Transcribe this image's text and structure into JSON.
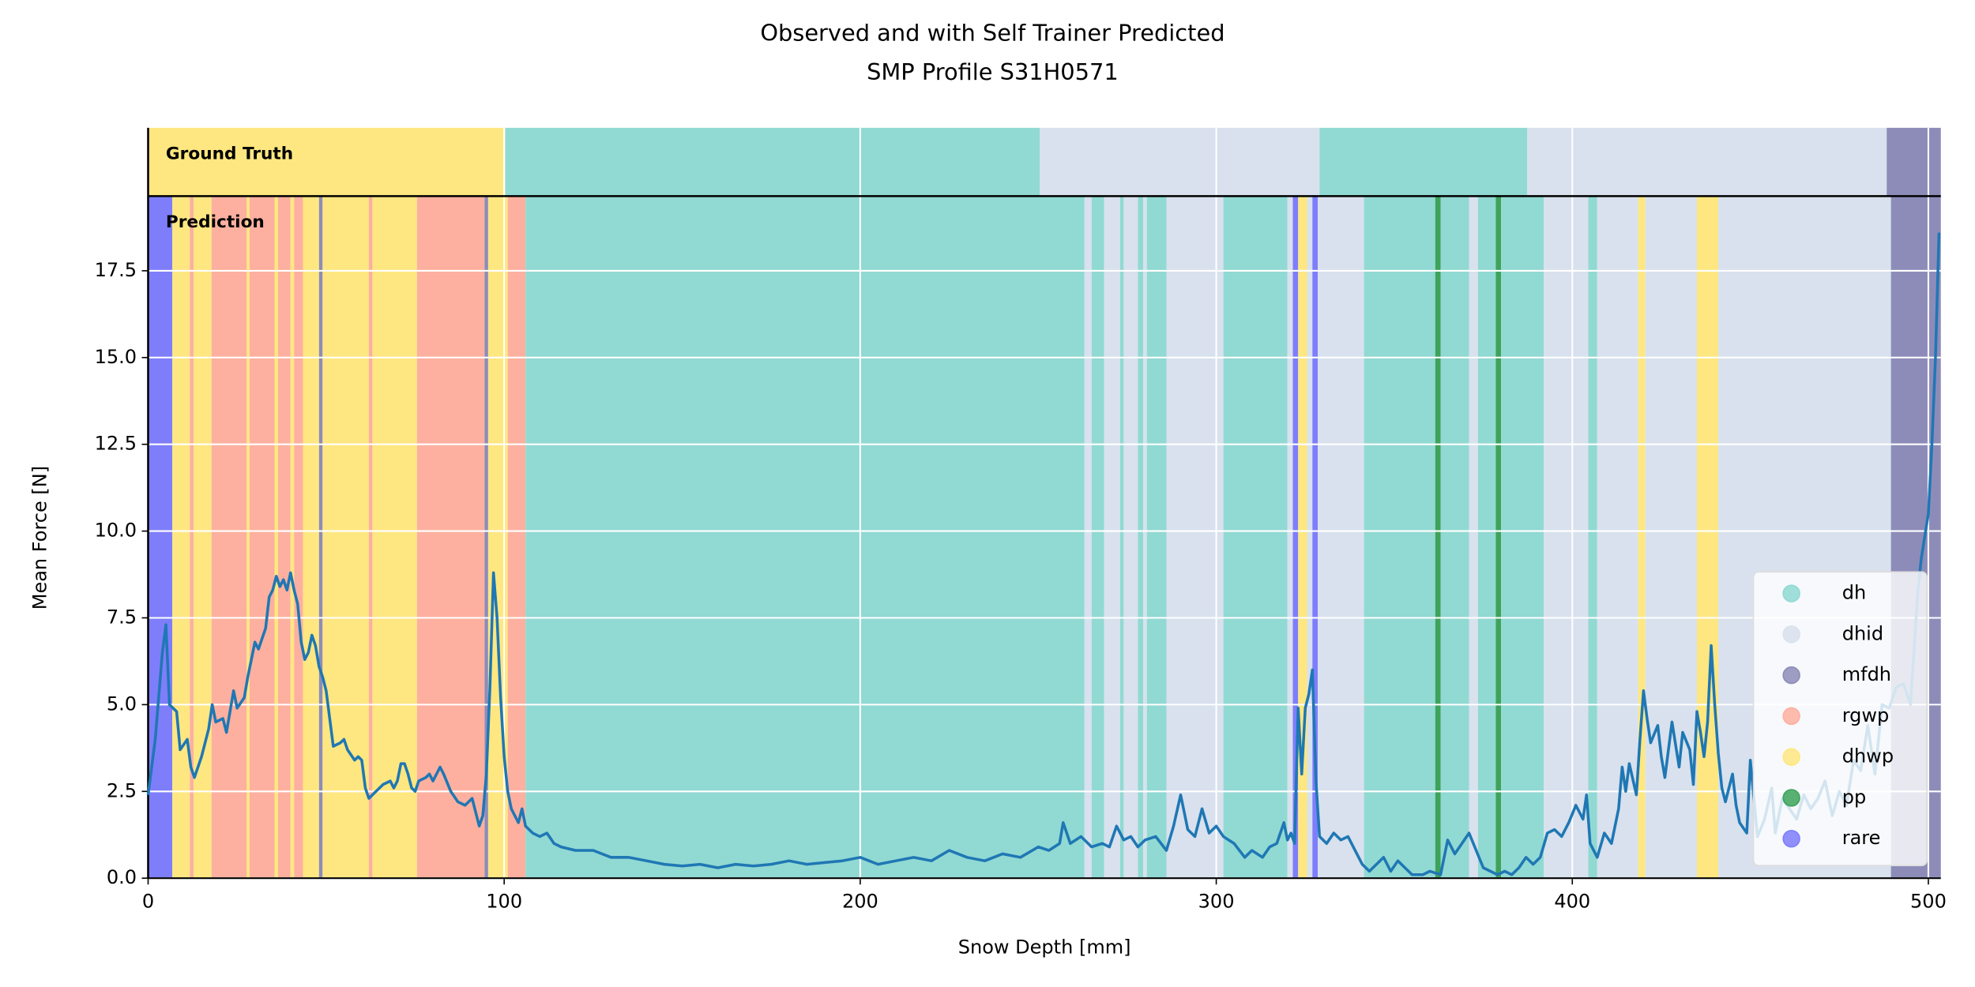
{
  "chart_data": {
    "type": "line",
    "title": [
      "Observed and with Self Trainer Predicted",
      "SMP Profile S31H0571"
    ],
    "xlabel": "Snow Depth [mm]",
    "ylabel": "Mean Force [N]",
    "xlim": [
      0,
      503.5
    ],
    "ylim": [
      0,
      19.65
    ],
    "xticks": [
      0,
      100,
      200,
      300,
      400,
      500
    ],
    "yticks": [
      {
        "value": 0,
        "label": "0.0"
      },
      2.5,
      {
        "value": 5,
        "label": "5.0"
      },
      7.5,
      {
        "value": 10,
        "label": "10.0"
      },
      12.5,
      {
        "value": 15,
        "label": "15.0"
      },
      17.5
    ],
    "grid": true,
    "legend": "lower right",
    "color": "#1f77b4",
    "x": [
      0,
      2,
      4,
      5,
      6,
      8,
      9,
      11,
      12,
      13,
      15,
      17,
      18,
      19,
      21,
      22,
      23,
      24,
      25,
      27,
      28,
      29,
      30,
      31,
      32,
      33,
      34,
      35,
      36,
      37,
      38,
      39,
      40,
      41,
      42,
      43,
      44,
      45,
      46,
      47,
      48,
      49,
      50,
      51,
      52,
      54,
      55,
      56,
      58,
      59,
      60,
      61,
      62,
      64,
      66,
      68,
      69,
      70,
      71,
      72,
      73,
      74,
      75,
      76,
      78,
      79,
      80,
      82,
      83,
      85,
      87,
      89,
      91,
      92,
      93,
      94,
      95,
      96,
      97,
      98,
      99,
      100,
      101,
      102,
      103,
      104,
      105,
      106,
      108,
      110,
      112,
      114,
      116,
      120,
      125,
      130,
      135,
      140,
      145,
      150,
      155,
      160,
      165,
      170,
      175,
      180,
      185,
      190,
      195,
      200,
      205,
      210,
      215,
      220,
      225,
      230,
      235,
      240,
      245,
      250,
      253,
      256,
      257,
      259,
      262,
      265,
      268,
      270,
      272,
      274,
      276,
      278,
      280,
      283,
      286,
      288,
      290,
      292,
      294,
      296,
      298,
      300,
      302,
      305,
      308,
      310,
      313,
      315,
      317,
      319,
      320,
      321,
      322,
      323,
      324,
      325,
      326,
      327,
      328,
      329,
      331,
      333,
      335,
      337,
      339,
      341,
      343,
      345,
      347,
      349,
      351,
      353,
      355,
      358,
      360,
      363,
      365,
      367,
      369,
      371,
      373,
      375,
      377,
      379,
      381,
      383,
      385,
      387,
      389,
      391,
      393,
      395,
      397,
      399,
      401,
      403,
      404,
      405,
      407,
      409,
      411,
      413,
      414,
      415,
      416,
      418,
      419,
      420,
      421,
      422,
      424,
      425,
      426,
      428,
      430,
      431,
      433,
      434,
      435,
      436,
      437,
      438,
      439,
      440,
      441,
      442,
      443,
      445,
      446,
      447,
      449,
      450,
      451,
      452,
      454,
      456,
      457,
      459,
      461,
      463,
      465,
      467,
      469,
      471,
      473,
      475,
      477,
      479,
      481,
      483,
      485,
      487,
      489,
      491,
      493,
      495,
      497,
      498,
      500,
      501,
      502,
      503
    ],
    "values": [
      2.4,
      4,
      6.5,
      7.3,
      5,
      4.8,
      3.7,
      4,
      3.2,
      2.9,
      3.5,
      4.3,
      5,
      4.5,
      4.6,
      4.2,
      4.8,
      5.4,
      4.9,
      5.2,
      5.8,
      6.3,
      6.8,
      6.6,
      6.9,
      7.2,
      8.1,
      8.3,
      8.7,
      8.4,
      8.6,
      8.3,
      8.8,
      8.3,
      7.9,
      6.8,
      6.3,
      6.5,
      7,
      6.7,
      6.1,
      5.8,
      5.4,
      4.6,
      3.8,
      3.9,
      4,
      3.7,
      3.4,
      3.5,
      3.4,
      2.6,
      2.3,
      2.5,
      2.7,
      2.8,
      2.6,
      2.8,
      3.3,
      3.3,
      3,
      2.6,
      2.5,
      2.8,
      2.9,
      3,
      2.8,
      3.2,
      3,
      2.5,
      2.2,
      2.1,
      2.3,
      1.9,
      1.5,
      1.8,
      3,
      5.5,
      8.8,
      7.5,
      5.2,
      3.5,
      2.5,
      2,
      1.8,
      1.6,
      2,
      1.5,
      1.3,
      1.2,
      1.3,
      1,
      0.9,
      0.8,
      0.8,
      0.6,
      0.6,
      0.5,
      0.4,
      0.35,
      0.4,
      0.3,
      0.4,
      0.35,
      0.4,
      0.5,
      0.4,
      0.45,
      0.5,
      0.6,
      0.4,
      0.5,
      0.6,
      0.5,
      0.8,
      0.6,
      0.5,
      0.7,
      0.6,
      0.9,
      0.8,
      1,
      1.6,
      1,
      1.2,
      0.9,
      1,
      0.9,
      1.5,
      1.1,
      1.2,
      0.9,
      1.1,
      1.2,
      0.8,
      1.5,
      2.4,
      1.4,
      1.2,
      2,
      1.3,
      1.5,
      1.2,
      1,
      0.6,
      0.8,
      0.6,
      0.9,
      1,
      1.6,
      1.1,
      1.3,
      1,
      4.9,
      3,
      4.9,
      5.3,
      6,
      2.8,
      1.2,
      1,
      1.3,
      1.1,
      1.2,
      0.8,
      0.4,
      0.2,
      0.4,
      0.6,
      0.2,
      0.5,
      0.3,
      0.1,
      0.1,
      0.2,
      0.1,
      1.1,
      0.7,
      1,
      1.3,
      0.8,
      0.3,
      0.2,
      0.1,
      0.2,
      0.1,
      0.3,
      0.6,
      0.4,
      0.6,
      1.3,
      1.4,
      1.2,
      1.6,
      2.1,
      1.7,
      2.4,
      1,
      0.6,
      1.3,
      1,
      2,
      3.2,
      2.5,
      3.3,
      2.4,
      4,
      5.4,
      4.6,
      3.9,
      4.4,
      3.5,
      2.9,
      4.5,
      3.2,
      4.2,
      3.7,
      2.7,
      4.8,
      4.2,
      3.5,
      4.5,
      6.7,
      5,
      3.6,
      2.6,
      2.2,
      3,
      2.1,
      1.6,
      1.3,
      3.4,
      2.3,
      1.2,
      1.7,
      2.6,
      1.3,
      2.3,
      2,
      1.7,
      2.4,
      2,
      2.3,
      2.8,
      1.8,
      2.5,
      2.1,
      3.4,
      3.1,
      4.4,
      3,
      5,
      4.9,
      5.5,
      5.6,
      5,
      8.2,
      9.2,
      10.5,
      12.5,
      15,
      18.6
    ],
    "classes": [
      {
        "name": "dh",
        "color": "#91d9d3"
      },
      {
        "name": "dhid",
        "color": "#d8e1ed"
      },
      {
        "name": "mfdh",
        "color": "#8d8cb9"
      },
      {
        "name": "rgwp",
        "color": "#fdb09f"
      },
      {
        "name": "dhwp",
        "color": "#fee780"
      },
      {
        "name": "pp",
        "color": "#3da35a"
      },
      {
        "name": "rare",
        "color": "#7e7efb"
      }
    ],
    "ground_truth": {
      "label": "Ground Truth",
      "edges": [
        0,
        100.3,
        250.4,
        329,
        387.3,
        488.3,
        503.5
      ],
      "classes": [
        "dhwp",
        "dh",
        "dhid",
        "dh",
        "dhid",
        "mfdh"
      ]
    },
    "prediction": {
      "label": "Prediction",
      "edges": [
        0,
        6.8,
        11.7,
        12.8,
        17.8,
        27.7,
        28.5,
        35.5,
        36.5,
        40,
        41,
        43.5,
        48,
        49,
        62,
        63,
        75.5,
        94.5,
        95.5,
        101,
        106,
        263,
        265,
        268.5,
        273,
        274,
        278,
        279.5,
        280.5,
        286,
        302,
        320,
        321.5,
        323,
        325.5,
        327,
        328.5,
        341.5,
        361.5,
        363,
        371,
        373.5,
        378.5,
        380,
        392,
        404.5,
        407,
        418.5,
        420.5,
        435,
        441,
        489.5,
        503.5
      ],
      "classes": [
        "rare",
        "dhwp",
        "rgwp",
        "dhwp",
        "rgwp",
        "dhwp",
        "rgwp",
        "dhwp",
        "rgwp",
        "dhwp",
        "rgwp",
        "dhwp",
        "mfdh",
        "dhwp",
        "rgwp",
        "dhwp",
        "rgwp",
        "mfdh",
        "dhwp",
        "rgwp",
        "dh",
        "dhid",
        "dh",
        "dhid",
        "dh",
        "dhid",
        "dh",
        "dhid",
        "dh",
        "dhid",
        "dh",
        "dhid",
        "rare",
        "dhwp",
        "dhid",
        "rare",
        "dhid",
        "dh",
        "pp",
        "dh",
        "dhid",
        "dh",
        "pp",
        "dh",
        "dhid",
        "dh",
        "dhid",
        "dhwp",
        "dhid",
        "dhwp",
        "dhid",
        "mfdh"
      ]
    }
  }
}
